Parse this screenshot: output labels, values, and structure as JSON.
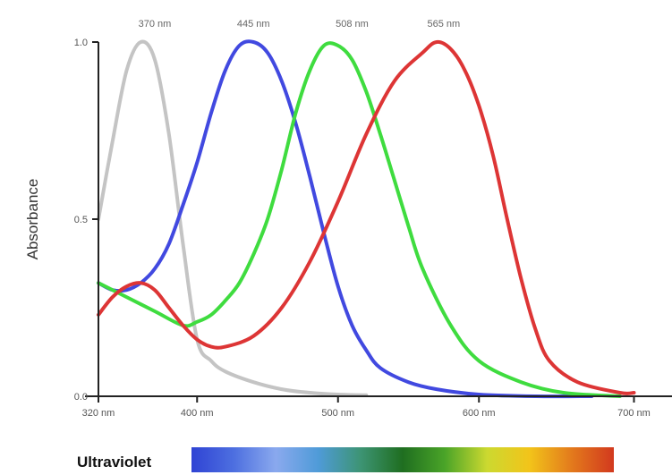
{
  "chart_data": {
    "type": "line",
    "title": "",
    "xlabel": "",
    "ylabel": "Absorbance",
    "xlim": [
      350,
      750
    ],
    "ylim": [
      0,
      1
    ],
    "x_ticks": [
      {
        "value": 350,
        "label": "320 nm"
      },
      {
        "value": 420,
        "label": "400 nm"
      },
      {
        "value": 520,
        "label": "500 nm"
      },
      {
        "value": 620,
        "label": "600 nm"
      },
      {
        "value": 730,
        "label": "700 nm"
      }
    ],
    "y_ticks": [
      {
        "value": 0,
        "label": "0.0"
      },
      {
        "value": 0.5,
        "label": "0.5"
      },
      {
        "value": 1,
        "label": "1.0"
      }
    ],
    "peak_labels": [
      {
        "x": 390,
        "label": "370 nm"
      },
      {
        "x": 460,
        "label": "445 nm"
      },
      {
        "x": 530,
        "label": "508 nm"
      },
      {
        "x": 595,
        "label": "565 nm"
      }
    ],
    "series": [
      {
        "color": "#c4c4c4",
        "x": [
          350,
          360,
          370,
          380,
          390,
          400,
          410,
          420,
          430,
          440,
          460,
          480,
          500,
          520,
          540
        ],
        "y": [
          0.5,
          0.72,
          0.92,
          1.0,
          0.95,
          0.74,
          0.43,
          0.16,
          0.1,
          0.07,
          0.04,
          0.02,
          0.01,
          0.005,
          0.003
        ]
      },
      {
        "color": "#4149e0",
        "x": [
          350,
          360,
          370,
          380,
          390,
          400,
          410,
          420,
          430,
          440,
          450,
          460,
          470,
          480,
          490,
          500,
          510,
          520,
          530,
          540,
          550,
          570,
          590,
          620,
          660,
          700
        ],
        "y": [
          0.32,
          0.3,
          0.3,
          0.32,
          0.36,
          0.43,
          0.54,
          0.66,
          0.8,
          0.92,
          0.99,
          1.0,
          0.97,
          0.89,
          0.77,
          0.62,
          0.46,
          0.31,
          0.2,
          0.13,
          0.08,
          0.04,
          0.02,
          0.005,
          0.0,
          0.0
        ]
      },
      {
        "color": "#3fdc3f",
        "x": [
          350,
          370,
          390,
          410,
          420,
          430,
          440,
          450,
          460,
          470,
          480,
          490,
          500,
          510,
          520,
          530,
          540,
          550,
          560,
          570,
          580,
          600,
          620,
          650,
          680,
          720
        ],
        "y": [
          0.32,
          0.28,
          0.24,
          0.2,
          0.21,
          0.23,
          0.27,
          0.32,
          0.4,
          0.5,
          0.64,
          0.8,
          0.92,
          0.99,
          0.99,
          0.95,
          0.86,
          0.74,
          0.61,
          0.48,
          0.36,
          0.2,
          0.1,
          0.04,
          0.01,
          0.0
        ]
      },
      {
        "color": "#dd3535",
        "x": [
          350,
          360,
          370,
          380,
          390,
          400,
          410,
          420,
          430,
          440,
          460,
          480,
          500,
          520,
          540,
          560,
          580,
          590,
          600,
          610,
          620,
          630,
          640,
          650,
          660,
          670,
          690,
          720,
          730
        ],
        "y": [
          0.23,
          0.28,
          0.31,
          0.32,
          0.3,
          0.25,
          0.2,
          0.16,
          0.14,
          0.14,
          0.17,
          0.25,
          0.38,
          0.55,
          0.74,
          0.89,
          0.97,
          1.0,
          0.98,
          0.92,
          0.82,
          0.68,
          0.5,
          0.33,
          0.19,
          0.1,
          0.04,
          0.01,
          0.01
        ]
      }
    ],
    "spectrum_bar": {
      "label": "Ultraviolet",
      "colors": [
        "#2f43d4",
        "#4d6fe0",
        "#8aa9ee",
        "#4f9bd8",
        "#3d9474",
        "#1f6e20",
        "#4aa428",
        "#ccd930",
        "#f2c41a",
        "#e37a1c",
        "#d2391e"
      ]
    }
  }
}
